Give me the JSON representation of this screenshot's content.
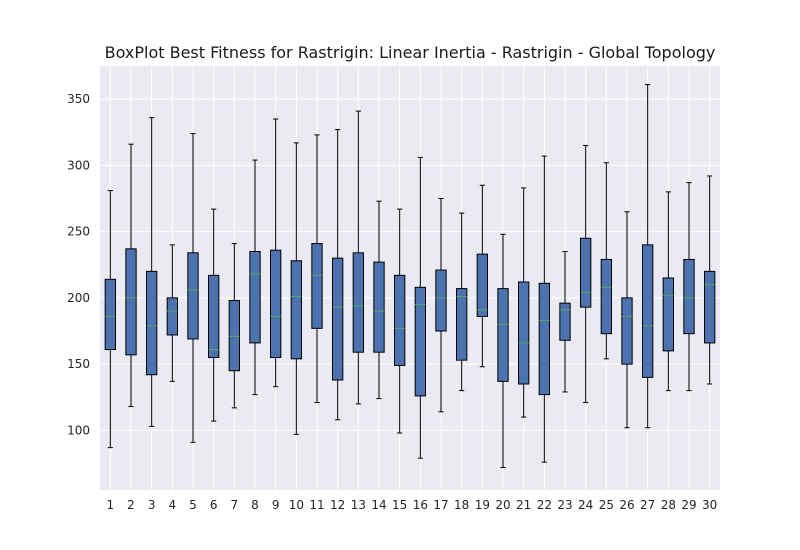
{
  "chart_data": {
    "type": "boxplot",
    "title": "BoxPlot Best Fitness for Rastrigin: Linear Inertia - Rastrigin - Global Topology",
    "xlabel": "",
    "ylabel": "",
    "ylim": [
      55,
      375
    ],
    "yticks": [
      100,
      150,
      200,
      250,
      300,
      350
    ],
    "grid": true,
    "colors": {
      "plot_bg": "#eaeaf2",
      "box_fill": "#4c72b0",
      "median": "#55a868",
      "edge": "#000000",
      "grid": "#ffffff"
    },
    "categories": [
      "1",
      "2",
      "3",
      "4",
      "5",
      "6",
      "7",
      "8",
      "9",
      "10",
      "11",
      "12",
      "13",
      "14",
      "15",
      "16",
      "17",
      "18",
      "19",
      "20",
      "21",
      "22",
      "23",
      "24",
      "25",
      "26",
      "27",
      "28",
      "29",
      "30"
    ],
    "boxes": [
      {
        "whislo": 87,
        "q1": 161,
        "med": 186,
        "q3": 214,
        "whishi": 281
      },
      {
        "whislo": 118,
        "q1": 157,
        "med": 200,
        "q3": 237,
        "whishi": 316
      },
      {
        "whislo": 103,
        "q1": 142,
        "med": 179,
        "q3": 220,
        "whishi": 336
      },
      {
        "whislo": 137,
        "q1": 172,
        "med": 190,
        "q3": 200,
        "whishi": 240
      },
      {
        "whislo": 91,
        "q1": 169,
        "med": 206,
        "q3": 234,
        "whishi": 324
      },
      {
        "whislo": 107,
        "q1": 155,
        "med": 161,
        "q3": 217,
        "whishi": 267
      },
      {
        "whislo": 117,
        "q1": 145,
        "med": 171,
        "q3": 198,
        "whishi": 241
      },
      {
        "whislo": 127,
        "q1": 166,
        "med": 218,
        "q3": 235,
        "whishi": 304
      },
      {
        "whislo": 133,
        "q1": 155,
        "med": 186,
        "q3": 236,
        "whishi": 335
      },
      {
        "whislo": 97,
        "q1": 154,
        "med": 201,
        "q3": 228,
        "whishi": 317
      },
      {
        "whislo": 121,
        "q1": 177,
        "med": 217,
        "q3": 241,
        "whishi": 323
      },
      {
        "whislo": 108,
        "q1": 138,
        "med": 193,
        "q3": 230,
        "whishi": 327
      },
      {
        "whislo": 120,
        "q1": 159,
        "med": 194,
        "q3": 234,
        "whishi": 341
      },
      {
        "whislo": 124,
        "q1": 159,
        "med": 190,
        "q3": 227,
        "whishi": 273
      },
      {
        "whislo": 98,
        "q1": 149,
        "med": 177,
        "q3": 217,
        "whishi": 267
      },
      {
        "whislo": 79,
        "q1": 126,
        "med": 195,
        "q3": 208,
        "whishi": 306
      },
      {
        "whislo": 114,
        "q1": 175,
        "med": 200,
        "q3": 221,
        "whishi": 275
      },
      {
        "whislo": 130,
        "q1": 153,
        "med": 201,
        "q3": 207,
        "whishi": 264
      },
      {
        "whislo": 148,
        "q1": 186,
        "med": 191,
        "q3": 233,
        "whishi": 285
      },
      {
        "whislo": 72,
        "q1": 137,
        "med": 180,
        "q3": 207,
        "whishi": 248
      },
      {
        "whislo": 110,
        "q1": 135,
        "med": 166,
        "q3": 212,
        "whishi": 283
      },
      {
        "whislo": 76,
        "q1": 127,
        "med": 183,
        "q3": 211,
        "whishi": 307
      },
      {
        "whislo": 129,
        "q1": 168,
        "med": 191,
        "q3": 196,
        "whishi": 235
      },
      {
        "whislo": 121,
        "q1": 193,
        "med": 204,
        "q3": 245,
        "whishi": 315
      },
      {
        "whislo": 154,
        "q1": 173,
        "med": 208,
        "q3": 229,
        "whishi": 302
      },
      {
        "whislo": 102,
        "q1": 150,
        "med": 186,
        "q3": 200,
        "whishi": 265
      },
      {
        "whislo": 102,
        "q1": 140,
        "med": 179,
        "q3": 240,
        "whishi": 361
      },
      {
        "whislo": 130,
        "q1": 160,
        "med": 202,
        "q3": 215,
        "whishi": 280
      },
      {
        "whislo": 130,
        "q1": 173,
        "med": 200,
        "q3": 229,
        "whishi": 287
      },
      {
        "whislo": 135,
        "q1": 166,
        "med": 210,
        "q3": 220,
        "whishi": 292
      }
    ]
  }
}
